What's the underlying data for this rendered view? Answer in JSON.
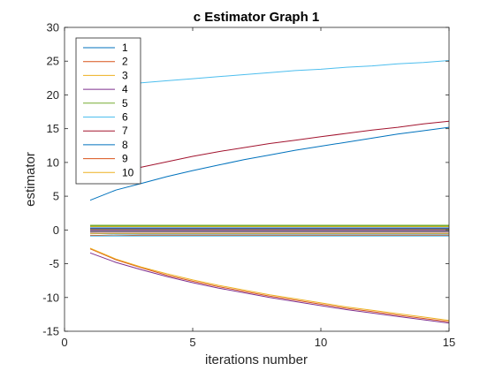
{
  "chart_data": {
    "type": "line",
    "title": "c Estimator Graph 1",
    "xlabel": "iterations number",
    "ylabel": "estimator",
    "xlim": [
      0,
      15
    ],
    "ylim": [
      -15,
      30
    ],
    "xticks": [
      0,
      5,
      10,
      15
    ],
    "yticks": [
      -15,
      -10,
      -5,
      0,
      5,
      10,
      15,
      20,
      25,
      30
    ],
    "grid": false,
    "legend_position": "top-left",
    "x": [
      1,
      2,
      3,
      4,
      5,
      6,
      7,
      8,
      9,
      10,
      11,
      12,
      13,
      14,
      15
    ],
    "series": [
      {
        "name": "1",
        "color": "#0072BD",
        "values": [
          4.4,
          5.9,
          6.9,
          7.9,
          8.8,
          9.6,
          10.4,
          11.1,
          11.8,
          12.4,
          13.0,
          13.6,
          14.2,
          14.7,
          15.2
        ]
      },
      {
        "name": "2",
        "color": "#D95319",
        "values": [
          -2.8,
          -4.4,
          -5.6,
          -6.7,
          -7.6,
          -8.4,
          -9.1,
          -9.8,
          -10.4,
          -11.0,
          -11.6,
          -12.1,
          -12.6,
          -13.1,
          -13.6
        ]
      },
      {
        "name": "3",
        "color": "#EDB120",
        "values": [
          -2.7,
          -4.3,
          -5.5,
          -6.5,
          -7.4,
          -8.2,
          -8.9,
          -9.6,
          -10.2,
          -10.8,
          -11.4,
          -11.9,
          -12.4,
          -12.9,
          -13.4
        ]
      },
      {
        "name": "4",
        "color": "#7E2F8E",
        "values": [
          -3.4,
          -4.8,
          -5.9,
          -6.9,
          -7.8,
          -8.6,
          -9.3,
          -10.0,
          -10.6,
          -11.2,
          -11.8,
          -12.3,
          -12.8,
          -13.3,
          -13.8
        ]
      },
      {
        "name": "5",
        "color": "#77AC30",
        "values": [
          0.7,
          0.7,
          0.7,
          0.7,
          0.7,
          0.7,
          0.7,
          0.7,
          0.7,
          0.7,
          0.7,
          0.7,
          0.7,
          0.7,
          0.7
        ]
      },
      {
        "name": "6",
        "color": "#4DBEEE",
        "values": [
          20.9,
          21.4,
          21.8,
          22.1,
          22.4,
          22.7,
          23.0,
          23.3,
          23.6,
          23.8,
          24.1,
          24.3,
          24.6,
          24.8,
          25.1
        ]
      },
      {
        "name": "7",
        "color": "#A2142F",
        "values": [
          7.0,
          8.4,
          9.3,
          10.1,
          10.9,
          11.6,
          12.2,
          12.8,
          13.3,
          13.8,
          14.3,
          14.8,
          15.2,
          15.7,
          16.1
        ]
      },
      {
        "name": "8",
        "color": "#0072BD",
        "values": [
          -0.5,
          -0.6,
          -0.6,
          -0.6,
          -0.6,
          -0.6,
          -0.6,
          -0.6,
          -0.6,
          -0.6,
          -0.6,
          -0.6,
          -0.6,
          -0.6,
          -0.6
        ]
      },
      {
        "name": "9",
        "color": "#D95319",
        "values": [
          -0.8,
          -0.85,
          -0.8,
          -0.8,
          -0.8,
          -0.8,
          -0.8,
          -0.8,
          -0.8,
          -0.8,
          -0.8,
          -0.8,
          -0.8,
          -0.8,
          -0.8
        ]
      },
      {
        "name": "10",
        "color": "#EDB120",
        "values": [
          0.5,
          0.5,
          0.5,
          0.5,
          0.5,
          0.5,
          0.5,
          0.5,
          0.5,
          0.5,
          0.5,
          0.5,
          0.5,
          0.5,
          0.5
        ]
      },
      {
        "color": "#7E2F8E",
        "values": [
          0.2,
          0.2,
          0.2,
          0.2,
          0.2,
          0.2,
          0.2,
          0.2,
          0.2,
          0.2,
          0.2,
          0.2,
          0.2,
          0.2,
          0.2
        ]
      },
      {
        "color": "#77AC30",
        "values": [
          0.1,
          0.1,
          0.1,
          0.1,
          0.1,
          0.1,
          0.1,
          0.1,
          0.1,
          0.1,
          0.1,
          0.1,
          0.1,
          0.1,
          0.1
        ]
      },
      {
        "color": "#4DBEEE",
        "values": [
          -0.9,
          -0.9,
          -0.9,
          -0.9,
          -0.9,
          -0.9,
          -0.9,
          -0.9,
          -0.9,
          -0.9,
          -0.9,
          -0.9,
          -0.9,
          -0.9,
          -0.9
        ]
      },
      {
        "color": "#A2142F",
        "values": [
          -0.3,
          -0.3,
          -0.3,
          -0.3,
          -0.3,
          -0.3,
          -0.3,
          -0.3,
          -0.3,
          -0.3,
          -0.3,
          -0.3,
          -0.3,
          -0.3,
          -0.3
        ]
      },
      {
        "color": "#0072BD",
        "values": [
          0.3,
          0.3,
          0.3,
          0.3,
          0.3,
          0.3,
          0.3,
          0.3,
          0.3,
          0.3,
          0.3,
          0.3,
          0.3,
          0.3,
          0.3
        ]
      },
      {
        "color": "#D95319",
        "values": [
          -0.1,
          -0.1,
          -0.1,
          -0.1,
          -0.1,
          -0.1,
          -0.1,
          -0.1,
          -0.1,
          -0.1,
          -0.1,
          -0.1,
          -0.1,
          -0.1,
          -0.1
        ]
      },
      {
        "color": "#EDB120",
        "values": [
          -0.5,
          -0.5,
          -0.5,
          -0.5,
          -0.5,
          -0.5,
          -0.5,
          -0.5,
          -0.5,
          -0.5,
          -0.5,
          -0.5,
          -0.5,
          -0.5,
          -0.5
        ]
      },
      {
        "color": "#7E2F8E",
        "values": [
          0.0,
          0.0,
          0.0,
          0.0,
          0.0,
          0.0,
          0.0,
          0.0,
          0.0,
          0.0,
          0.0,
          0.0,
          0.0,
          0.0,
          0.0
        ]
      },
      {
        "color": "#77AC30",
        "values": [
          0.6,
          0.6,
          0.6,
          0.6,
          0.6,
          0.6,
          0.6,
          0.6,
          0.6,
          0.6,
          0.6,
          0.6,
          0.6,
          0.6,
          0.6
        ]
      },
      {
        "color": "#4DBEEE",
        "values": [
          -0.2,
          -0.2,
          -0.2,
          -0.2,
          -0.2,
          -0.2,
          -0.2,
          -0.2,
          -0.2,
          -0.2,
          -0.2,
          -0.2,
          -0.2,
          -0.2,
          -0.2
        ]
      }
    ]
  }
}
